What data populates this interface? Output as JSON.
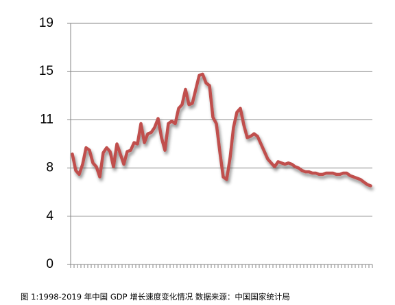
{
  "chart_data": {
    "type": "line",
    "caption": "图 1:1998-2019 年中国 GDP 增长速度变化情况 数据来源：中国国家统计局",
    "categories": [
      null,
      null,
      null,
      null,
      null,
      null,
      null,
      null,
      null,
      null,
      null,
      null,
      null,
      null,
      null,
      null,
      null,
      null,
      null,
      null,
      null,
      null,
      null,
      null,
      null,
      null,
      null,
      null,
      null,
      null,
      null,
      null,
      null,
      null,
      null,
      null,
      null,
      null,
      null,
      null,
      null,
      null,
      null,
      null,
      null,
      null,
      null,
      null,
      null,
      null,
      null,
      null,
      null,
      null,
      null,
      null,
      null,
      null,
      null,
      null,
      null,
      null,
      null,
      null,
      null,
      null,
      null,
      null,
      null,
      null,
      null,
      null,
      null,
      null,
      null,
      null,
      null,
      null,
      null,
      null,
      null,
      null,
      null,
      null,
      null,
      null,
      null,
      null
    ],
    "values": [
      8.7,
      7.4,
      7.1,
      7.9,
      9.2,
      9.0,
      8.0,
      7.7,
      6.9,
      8.8,
      9.2,
      8.9,
      7.7,
      9.5,
      8.7,
      7.9,
      8.9,
      9.0,
      9.6,
      9.5,
      11.1,
      9.6,
      10.3,
      10.4,
      10.8,
      11.5,
      10.0,
      9.0,
      11.1,
      11.3,
      11.1,
      12.3,
      12.6,
      13.8,
      12.6,
      12.7,
      13.8,
      14.9,
      15.0,
      14.3,
      14.1,
      11.6,
      11.1,
      8.9,
      6.9,
      6.7,
      8.4,
      10.8,
      12.0,
      12.3,
      11.0,
      10.0,
      10.1,
      10.3,
      10.1,
      9.5,
      8.9,
      8.3,
      8.0,
      7.7,
      8.1,
      8.0,
      7.9,
      8.0,
      7.9,
      7.7,
      7.6,
      7.4,
      7.3,
      7.3,
      7.2,
      7.2,
      7.1,
      7.1,
      7.2,
      7.2,
      7.2,
      7.1,
      7.1,
      7.2,
      7.2,
      7.0,
      6.9,
      6.8,
      6.7,
      6.5,
      6.3,
      6.2
    ],
    "color": "#c0504d",
    "ylim": [
      0,
      19
    ],
    "yticks": [
      0,
      {
        "value": 3.8,
        "label": "4"
      },
      {
        "value": 7.6,
        "label": "8"
      },
      {
        "value": 11.4,
        "label": "11"
      },
      {
        "value": 15.2,
        "label": "15"
      },
      19
    ],
    "grid": true
  }
}
